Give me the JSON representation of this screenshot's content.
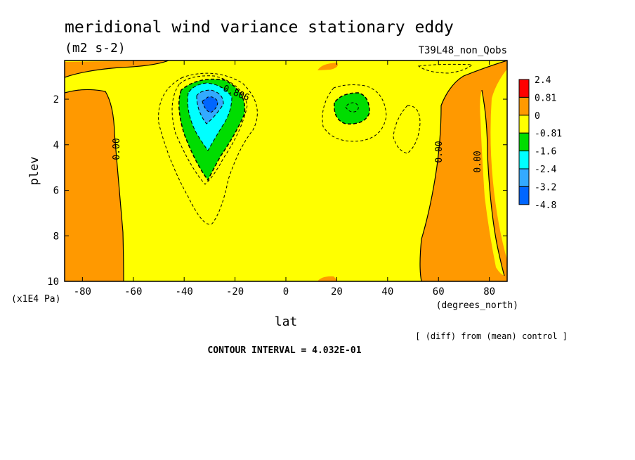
{
  "chart_data": {
    "type": "contour",
    "title": "meridional wind variance  stationary eddy",
    "units": "(m2 s-2)",
    "run_label": "T39L48_non_Qobs",
    "xlabel": "lat",
    "xunits": "(degrees_north)",
    "ylabel": "plev",
    "yunits": "(x1E4 Pa)",
    "xlim": [
      -87,
      87
    ],
    "ylim": [
      10,
      0.3
    ],
    "x_ticks": [
      -80,
      -60,
      -40,
      -20,
      0,
      20,
      40,
      60,
      80
    ],
    "y_ticks": [
      2,
      4,
      6,
      8,
      10
    ],
    "diff_note": "[ (diff) from (mean) control ]",
    "contour_interval": "CONTOUR INTERVAL = 4.032E-01",
    "colorbar": {
      "labels": [
        "2.4",
        "0.81",
        "0",
        "-0.81",
        "-1.6",
        "-2.4",
        "-3.2",
        "-4.8"
      ],
      "colors": [
        "#ff0000",
        "#ff9900",
        "#ffff00",
        "#00dd00",
        "#00ffff",
        "#33aaff",
        "#0066ff"
      ]
    },
    "contour_labels": [
      {
        "text": "0.00",
        "lat": -67,
        "plev": 4.0
      },
      {
        "text": "0.00",
        "lat": 62,
        "plev": 4.0
      },
      {
        "text": "0.00",
        "lat": 77,
        "plev": 4.6
      },
      {
        "text": "-0.806",
        "lat": -23,
        "plev": 1.4
      }
    ],
    "regions": [
      {
        "level": "0 to 0.81",
        "color": "#ff9900",
        "description": "south polar band",
        "lat": [
          -87,
          -65
        ]
      },
      {
        "level": "0 to 0.81",
        "color": "#ff9900",
        "description": "northern high latitudes",
        "lat": [
          53,
          87
        ]
      },
      {
        "level": "-0.81 to -1.6",
        "color": "#00dd00",
        "center": {
          "lat": -30,
          "plev": 2.2
        }
      },
      {
        "level": "-1.6 to -2.4",
        "color": "#00ffff",
        "center": {
          "lat": -30,
          "plev": 2.2
        }
      },
      {
        "level": "-2.4 to -3.2",
        "color": "#33aaff",
        "center": {
          "lat": -30,
          "plev": 2.1
        }
      },
      {
        "level": "-3.2 to -4.8",
        "color": "#0066ff",
        "center": {
          "lat": -30,
          "plev": 2.1
        }
      },
      {
        "level": "-0.81 to -1.6",
        "color": "#00dd00",
        "center": {
          "lat": 26,
          "plev": 2.3
        }
      }
    ]
  }
}
